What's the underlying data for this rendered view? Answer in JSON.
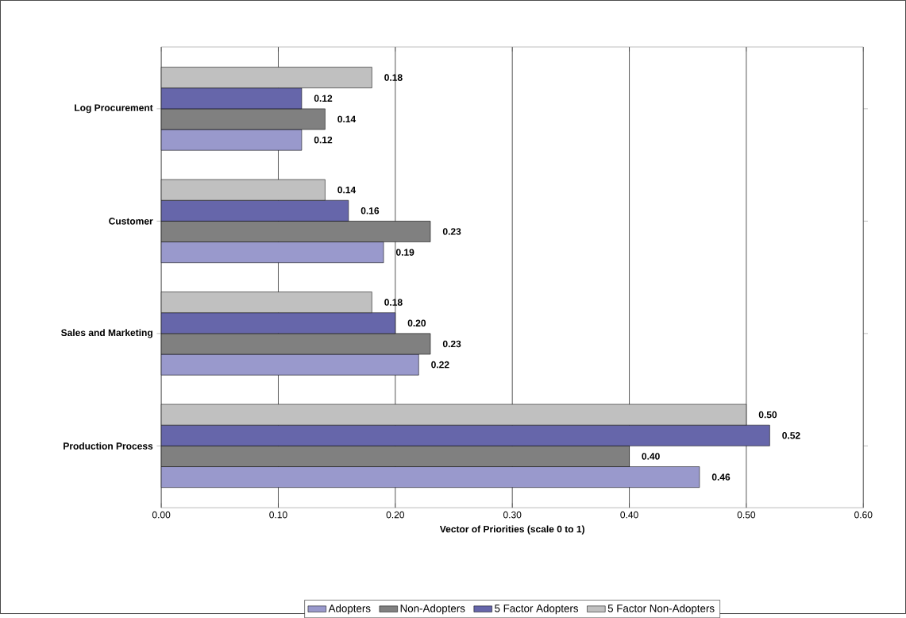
{
  "chart_data": {
    "type": "bar",
    "orientation": "horizontal",
    "xlabel": "Vector of Priorities (scale 0 to 1)",
    "categories": [
      "Log Procurement",
      "Customer",
      "Sales and Marketing",
      "Production Process"
    ],
    "series": [
      {
        "name": "Adopters",
        "color": "#9999cc",
        "values": [
          0.12,
          0.19,
          0.22,
          0.46
        ],
        "value_labels": [
          "0.12",
          "0.19",
          "0.22",
          "0.46"
        ]
      },
      {
        "name": "Non-Adopters",
        "color": "#808080",
        "values": [
          0.14,
          0.23,
          0.23,
          0.4
        ],
        "value_labels": [
          "0.14",
          "0.23",
          "0.23",
          "0.40"
        ]
      },
      {
        "name": "5 Factor Adopters",
        "color": "#6666aa",
        "values": [
          0.12,
          0.16,
          0.2,
          0.52
        ],
        "value_labels": [
          "0.12",
          "0.16",
          "0.20",
          "0.52"
        ]
      },
      {
        "name": "5 Factor Non-Adopters",
        "color": "#c0c0c0",
        "values": [
          0.18,
          0.14,
          0.18,
          0.5
        ],
        "value_labels": [
          "0.18",
          "0.14",
          "0.18",
          "0.50"
        ]
      }
    ],
    "xlim": [
      0,
      0.6
    ],
    "xticks": [
      {
        "value": 0,
        "label": "0.00"
      },
      {
        "value": 0.1,
        "label": "0.10"
      },
      {
        "value": 0.2,
        "label": "0.20"
      },
      {
        "value": 0.3,
        "label": "0.30"
      },
      {
        "value": 0.4,
        "label": "0.40"
      },
      {
        "value": 0.5,
        "label": "0.50"
      },
      {
        "value": 0.6,
        "label": "0.60"
      }
    ],
    "grid": "x",
    "legend": "bottom"
  }
}
